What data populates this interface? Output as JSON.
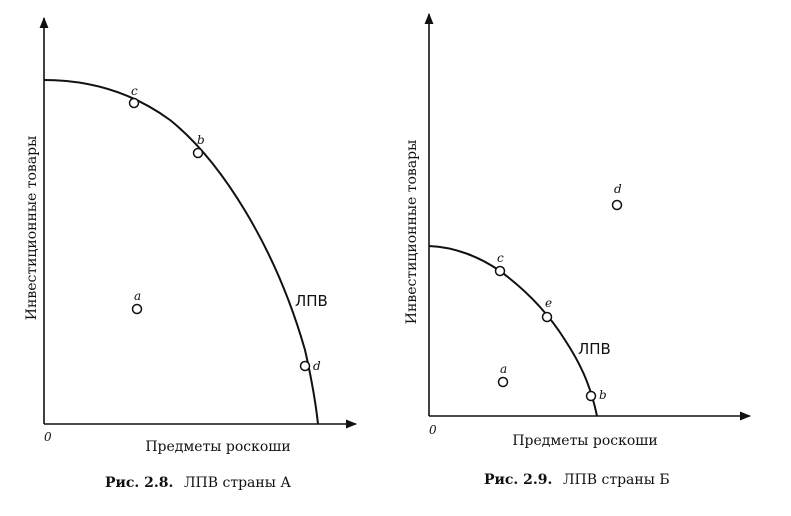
{
  "figures": [
    {
      "id": "fig-2-8",
      "caption_prefix": "Рис. 2.8.",
      "caption_text": "ЛПВ страны А",
      "y_label": "Инвестиционные товары",
      "x_label": "Предметы роскоши",
      "origin_label": "0",
      "curve_label": "ЛПВ",
      "points": [
        {
          "label": "c",
          "on_curve": true
        },
        {
          "label": "b",
          "on_curve": true
        },
        {
          "label": "a",
          "on_curve": false
        },
        {
          "label": "d",
          "on_curve": true
        }
      ]
    },
    {
      "id": "fig-2-9",
      "caption_prefix": "Рис. 2.9.",
      "caption_text": "ЛПВ страны Б",
      "y_label": "Инвестиционные товары",
      "x_label": "Предметы роскоши",
      "origin_label": "0",
      "curve_label": "ЛПВ",
      "points": [
        {
          "label": "d",
          "on_curve": false
        },
        {
          "label": "c",
          "on_curve": true
        },
        {
          "label": "e",
          "on_curve": true
        },
        {
          "label": "a",
          "on_curve": false
        },
        {
          "label": "b",
          "on_curve": true
        }
      ]
    }
  ],
  "colors": {
    "ink": "#111111",
    "paper": "#ffffff"
  }
}
